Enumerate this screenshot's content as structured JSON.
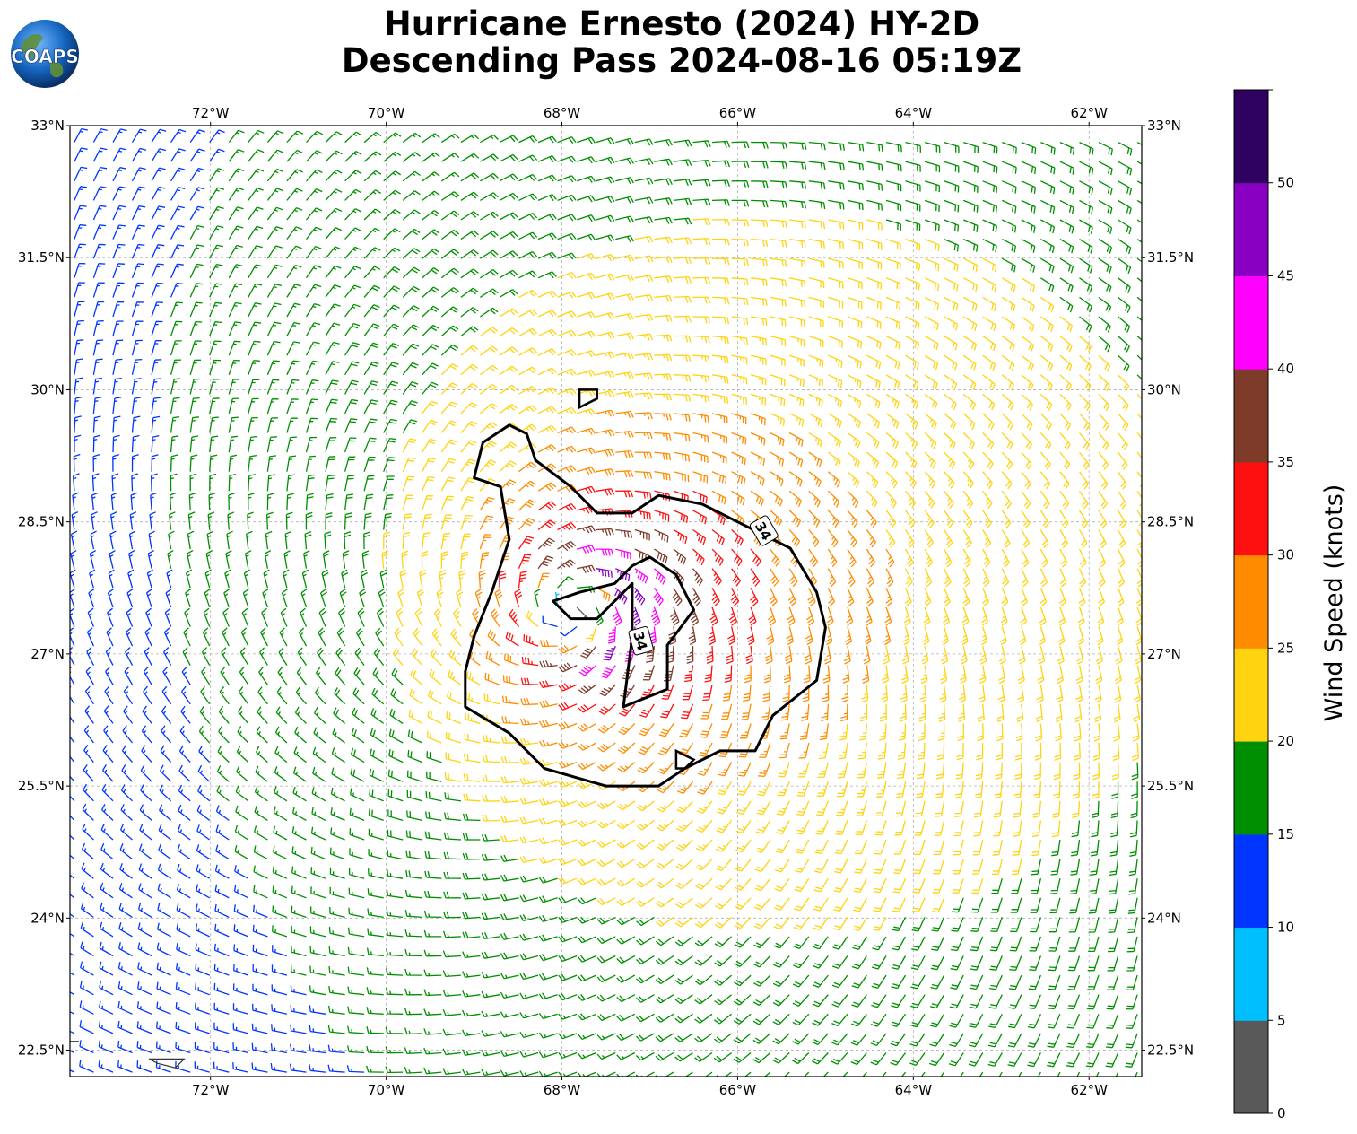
{
  "logo": {
    "text": "COAPS",
    "name": "coaps-logo"
  },
  "title": {
    "line1": "Hurricane Ernesto (2024) HY-2D",
    "line2": "Descending Pass 2024-08-16 05:19Z"
  },
  "map": {
    "lon_range": [
      -73.6,
      -61.4
    ],
    "lat_range": [
      22.2,
      33
    ],
    "lon_ticks": [
      {
        "value": -72,
        "label": "72°W"
      },
      {
        "value": -70,
        "label": "70°W"
      },
      {
        "value": -68,
        "label": "68°W"
      },
      {
        "value": -66,
        "label": "66°W"
      },
      {
        "value": -64,
        "label": "64°W"
      },
      {
        "value": -62,
        "label": "62°W"
      }
    ],
    "lat_ticks": [
      {
        "value": 33,
        "label": "33°N"
      },
      {
        "value": 31.5,
        "label": "31.5°N"
      },
      {
        "value": 30,
        "label": "30°N"
      },
      {
        "value": 28.5,
        "label": "28.5°N"
      },
      {
        "value": 27,
        "label": "27°N"
      },
      {
        "value": 25.5,
        "label": "25.5°N"
      },
      {
        "value": 24,
        "label": "24°N"
      },
      {
        "value": 22.5,
        "label": "22.5°N"
      }
    ],
    "grid": true,
    "storm_center": {
      "lon": -67.9,
      "lat": 27.5
    },
    "contour_label": "34",
    "contour_34kt": [
      [
        -69.0,
        29.0
      ],
      [
        -68.9,
        29.4
      ],
      [
        -68.6,
        29.6
      ],
      [
        -68.4,
        29.5
      ],
      [
        -68.3,
        29.2
      ],
      [
        -67.9,
        28.9
      ],
      [
        -67.6,
        28.6
      ],
      [
        -67.2,
        28.6
      ],
      [
        -66.9,
        28.8
      ],
      [
        -66.4,
        28.7
      ],
      [
        -66.0,
        28.5
      ],
      [
        -65.4,
        28.2
      ],
      [
        -65.1,
        27.7
      ],
      [
        -65.0,
        27.3
      ],
      [
        -65.1,
        26.7
      ],
      [
        -65.6,
        26.3
      ],
      [
        -65.8,
        25.9
      ],
      [
        -66.2,
        25.9
      ],
      [
        -66.6,
        25.7
      ],
      [
        -66.9,
        25.5
      ],
      [
        -67.5,
        25.5
      ],
      [
        -68.2,
        25.7
      ],
      [
        -68.6,
        26.1
      ],
      [
        -69.1,
        26.4
      ],
      [
        -69.1,
        26.8
      ],
      [
        -69.0,
        27.2
      ],
      [
        -68.8,
        27.7
      ],
      [
        -68.6,
        28.3
      ],
      [
        -68.7,
        28.9
      ],
      [
        -69.0,
        29.0
      ]
    ],
    "contour_inner": [
      [
        -68.1,
        27.6
      ],
      [
        -67.8,
        27.7
      ],
      [
        -67.4,
        27.8
      ],
      [
        -67.2,
        28.0
      ],
      [
        -67.0,
        28.1
      ],
      [
        -66.7,
        27.9
      ],
      [
        -66.5,
        27.5
      ],
      [
        -66.8,
        27.1
      ],
      [
        -66.8,
        26.6
      ],
      [
        -67.3,
        26.4
      ],
      [
        -67.2,
        27.2
      ],
      [
        -67.2,
        27.8
      ],
      [
        -67.6,
        27.4
      ],
      [
        -67.9,
        27.4
      ],
      [
        -68.1,
        27.6
      ]
    ],
    "small_contours": [
      [
        [
          -67.8,
          29.8
        ],
        [
          -67.6,
          29.9
        ],
        [
          -67.6,
          30.0
        ],
        [
          -67.8,
          30.0
        ],
        [
          -67.8,
          29.8
        ]
      ],
      [
        [
          -66.6,
          25.7
        ],
        [
          -66.5,
          25.8
        ],
        [
          -66.7,
          25.9
        ],
        [
          -66.7,
          25.7
        ],
        [
          -66.6,
          25.7
        ]
      ]
    ],
    "islands": [
      [
        [
          -73.6,
          22.6
        ],
        [
          -73.5,
          22.6
        ]
      ],
      [
        [
          -72.7,
          22.4
        ],
        [
          -72.3,
          22.4
        ],
        [
          -72.4,
          22.3
        ],
        [
          -72.6,
          22.35
        ],
        [
          -72.7,
          22.4
        ]
      ]
    ]
  },
  "colorbar": {
    "label": "Wind Speed (knots)",
    "ticks": [
      "0",
      "5",
      "10",
      "15",
      "20",
      "25",
      "30",
      "35",
      "40",
      "45",
      "50"
    ],
    "colors": [
      "#595959",
      "#00bfff",
      "#0035ff",
      "#008f00",
      "#ffd30f",
      "#ff8c00",
      "#ff1010",
      "#7f3b2a",
      "#ff00ff",
      "#8a00c3",
      "#2e005f"
    ],
    "max": 55
  },
  "wind_field": {
    "eye_lon": -67.9,
    "eye_lat": 27.5,
    "rmw_deg": 0.55,
    "vmax_kt": 43,
    "far_kt": 7,
    "barb_spacing_deg": 0.22
  }
}
